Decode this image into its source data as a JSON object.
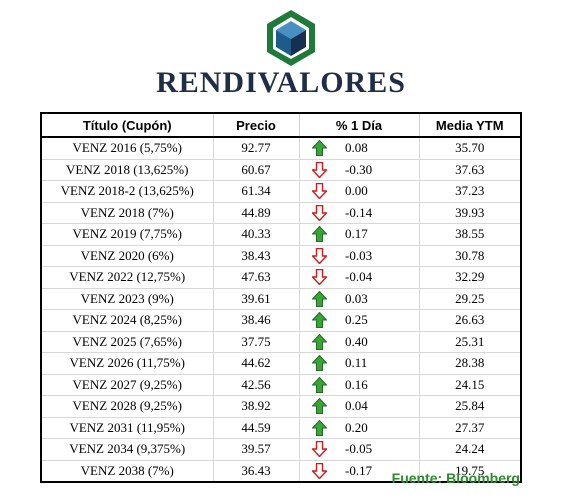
{
  "brand": {
    "name": "RENDIVALORES"
  },
  "table": {
    "headers": {
      "title": "Título (Cupón)",
      "price": "Precio",
      "change": "% 1 Día",
      "ytm": "Media YTM"
    },
    "rows": [
      {
        "title": "VENZ 2016 (5,75%)",
        "price": "92.77",
        "direction": "up",
        "change": "0.08",
        "ytm": "35.70"
      },
      {
        "title": "VENZ 2018 (13,625%)",
        "price": "60.67",
        "direction": "down",
        "change": "-0.30",
        "ytm": "37.63"
      },
      {
        "title": "VENZ 2018-2 (13,625%)",
        "price": "61.34",
        "direction": "down",
        "change": "0.00",
        "ytm": "37.23"
      },
      {
        "title": "VENZ 2018 (7%)",
        "price": "44.89",
        "direction": "down",
        "change": "-0.14",
        "ytm": "39.93"
      },
      {
        "title": "VENZ 2019 (7,75%)",
        "price": "40.33",
        "direction": "up",
        "change": "0.17",
        "ytm": "38.55"
      },
      {
        "title": "VENZ 2020 (6%)",
        "price": "38.43",
        "direction": "down",
        "change": "-0.03",
        "ytm": "30.78"
      },
      {
        "title": "VENZ 2022 (12,75%)",
        "price": "47.63",
        "direction": "down",
        "change": "-0.04",
        "ytm": "32.29"
      },
      {
        "title": "VENZ 2023 (9%)",
        "price": "39.61",
        "direction": "up",
        "change": "0.03",
        "ytm": "29.25"
      },
      {
        "title": "VENZ 2024 (8,25%)",
        "price": "38.46",
        "direction": "up",
        "change": "0.25",
        "ytm": "26.63"
      },
      {
        "title": "VENZ 2025 (7,65%)",
        "price": "37.75",
        "direction": "up",
        "change": "0.40",
        "ytm": "25.31"
      },
      {
        "title": "VENZ 2026 (11,75%)",
        "price": "44.62",
        "direction": "up",
        "change": "0.11",
        "ytm": "28.38"
      },
      {
        "title": "VENZ 2027 (9,25%)",
        "price": "42.56",
        "direction": "up",
        "change": "0.16",
        "ytm": "24.15"
      },
      {
        "title": "VENZ 2028 (9,25%)",
        "price": "38.92",
        "direction": "up",
        "change": "0.04",
        "ytm": "25.84"
      },
      {
        "title": "VENZ 2031 (11,95%)",
        "price": "44.59",
        "direction": "up",
        "change": "0.20",
        "ytm": "27.37"
      },
      {
        "title": "VENZ 2034 (9,375%)",
        "price": "39.57",
        "direction": "down",
        "change": "-0.05",
        "ytm": "24.24"
      },
      {
        "title": "VENZ 2038 (7%)",
        "price": "36.43",
        "direction": "down",
        "change": "-0.17",
        "ytm": "19.75"
      }
    ]
  },
  "footer": {
    "source": "Fuente: Bloomberg"
  },
  "colors": {
    "up": "#2e9a2e",
    "down": "#c81e1e",
    "brand": "#1f2d47",
    "logo_green": "#1f7a3a",
    "logo_blue": "#1c5b8a"
  },
  "icons": {
    "up": "green-up-arrow-icon",
    "down": "red-down-arrow-icon"
  }
}
